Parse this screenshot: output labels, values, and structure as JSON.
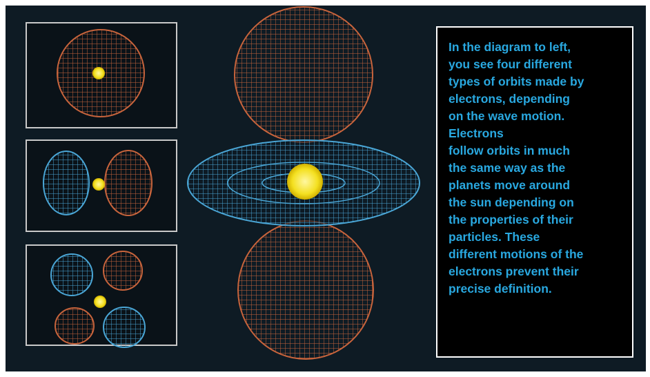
{
  "text_box": {
    "lines": [
      "In the diagram to left,",
      "you see four different",
      "types of orbits made by",
      "electrons, depending",
      "on the wave motion.",
      "Electrons",
      "follow orbits in much",
      "the same way as the",
      "planets move around",
      "the sun depending on",
      "the properties of their",
      "particles. These",
      "different motions of the",
      "electrons prevent their",
      "precise definition."
    ]
  }
}
